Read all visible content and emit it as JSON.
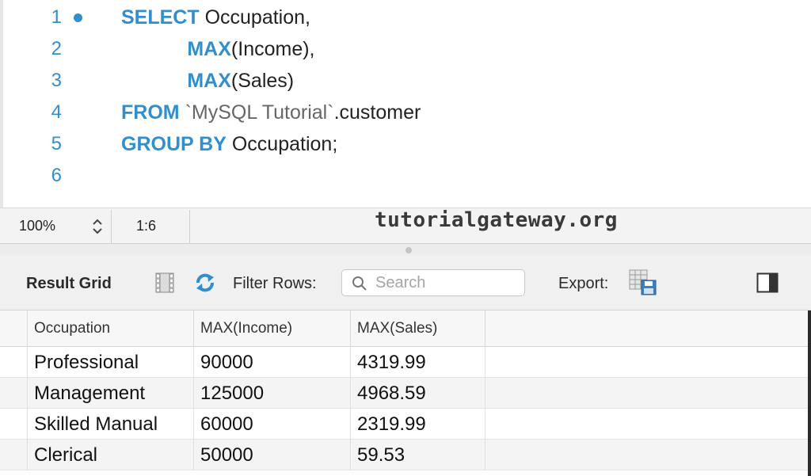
{
  "editor": {
    "lines": [
      {
        "num": "1",
        "tokens": [
          {
            "t": "SELECT",
            "k": "kw"
          },
          {
            "t": " Occupation,",
            "k": ""
          }
        ]
      },
      {
        "num": "2",
        "tokens": [
          {
            "t": "            ",
            "k": ""
          },
          {
            "t": "MAX",
            "k": "kw"
          },
          {
            "t": "(Income),",
            "k": ""
          }
        ]
      },
      {
        "num": "3",
        "tokens": [
          {
            "t": "            ",
            "k": ""
          },
          {
            "t": "MAX",
            "k": "kw"
          },
          {
            "t": "(Sales)",
            "k": ""
          }
        ]
      },
      {
        "num": "4",
        "tokens": [
          {
            "t": "FROM",
            "k": "kw"
          },
          {
            "t": " ",
            "k": ""
          },
          {
            "t": "`MySQL Tutorial`",
            "k": "str"
          },
          {
            "t": ".customer",
            "k": ""
          }
        ]
      },
      {
        "num": "5",
        "tokens": [
          {
            "t": "GROUP BY",
            "k": "kw"
          },
          {
            "t": " Occupation;",
            "k": ""
          }
        ]
      },
      {
        "num": "6",
        "tokens": []
      }
    ],
    "accent_color": "#2f8fcf"
  },
  "status": {
    "zoom": "100%",
    "cursor_pos": "1:6",
    "watermark": "tutorialgateway.org"
  },
  "toolbar": {
    "result_grid_label": "Result Grid",
    "filter_label": "Filter Rows:",
    "search_placeholder": "Search",
    "export_label": "Export:"
  },
  "grid": {
    "columns": [
      "Occupation",
      "MAX(Income)",
      "MAX(Sales)"
    ],
    "rows": [
      [
        "Professional",
        "90000",
        "4319.99"
      ],
      [
        "Management",
        "125000",
        "4968.59"
      ],
      [
        "Skilled Manual",
        "60000",
        "2319.99"
      ],
      [
        "Clerical",
        "50000",
        "59.53"
      ]
    ]
  }
}
